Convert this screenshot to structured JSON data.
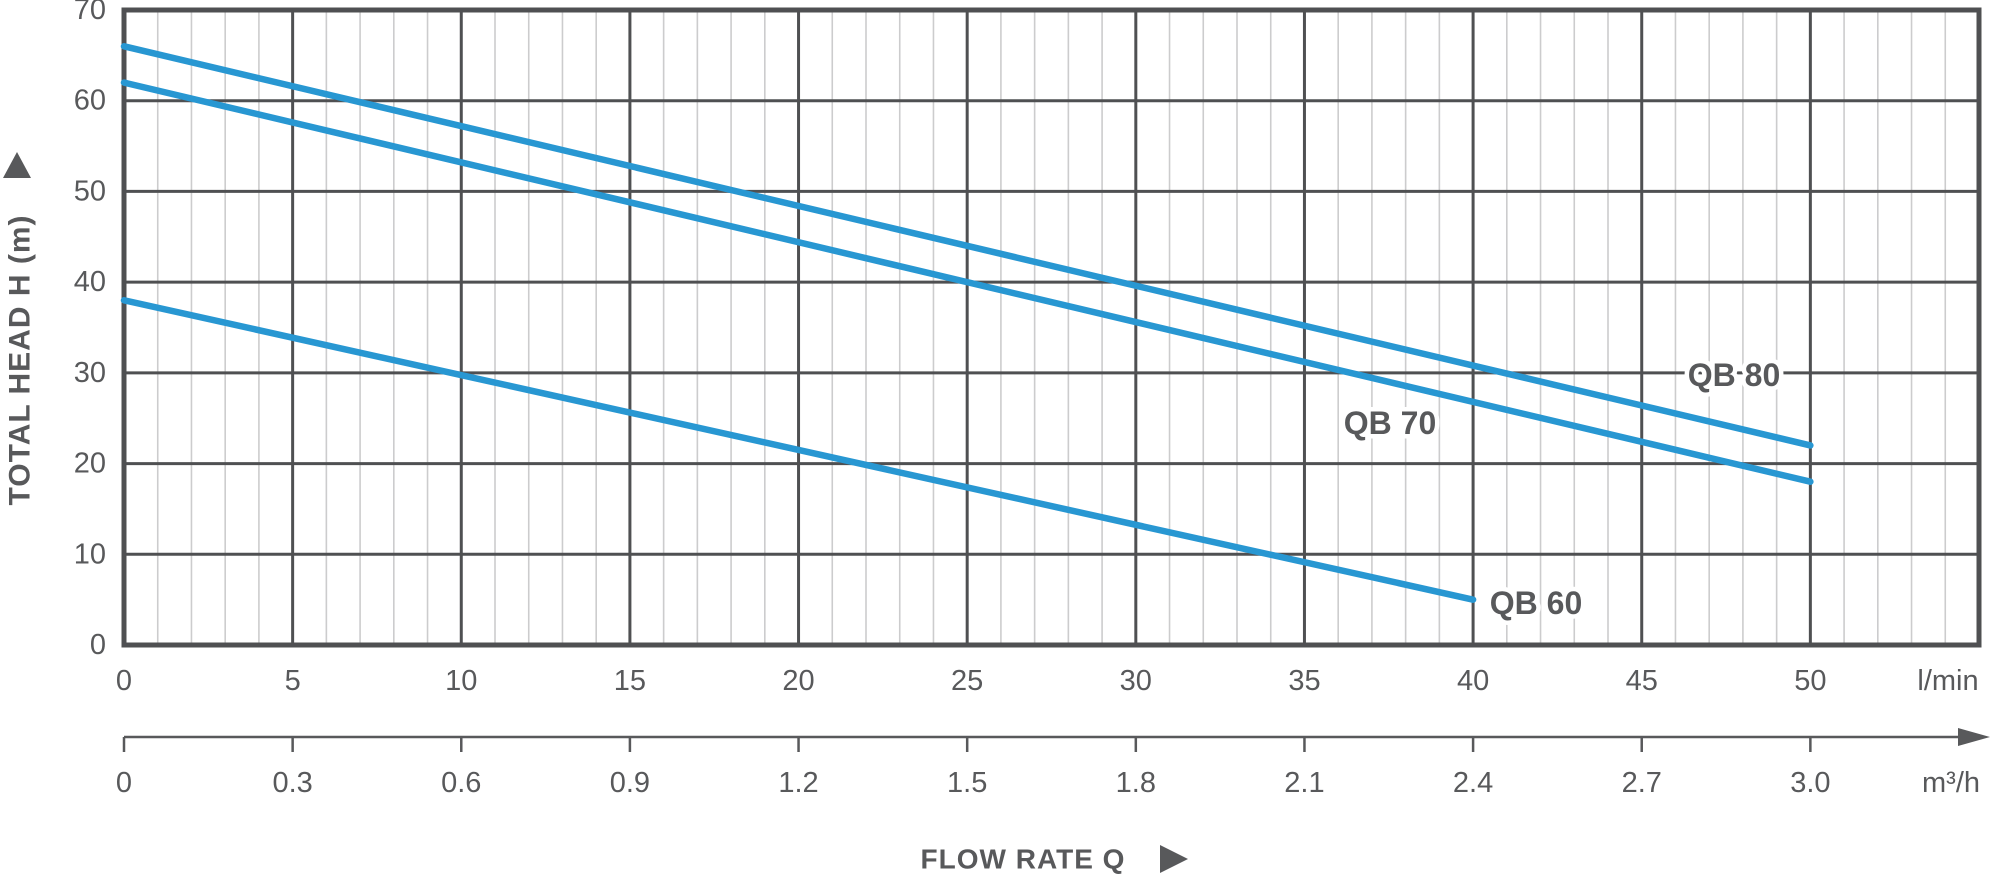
{
  "chart_data": {
    "type": "line",
    "title": "",
    "x_title": "FLOW RATE Q",
    "y_axis": {
      "title": "TOTAL HEAD H (m)",
      "ticks": [
        0,
        10,
        20,
        30,
        40,
        50,
        60,
        70
      ],
      "range": [
        0,
        70
      ],
      "grid": "major-horizontal"
    },
    "x_axis_primary": {
      "unit": "l/min",
      "ticks": [
        0,
        5,
        10,
        15,
        20,
        25,
        30,
        35,
        40,
        45,
        50
      ],
      "range_visible": [
        0,
        55
      ],
      "minor_step": 1,
      "major_step": 5,
      "grid": "major+minor-vertical"
    },
    "x_axis_secondary": {
      "unit": "m³/h",
      "tick_labels": [
        "0",
        "0.3",
        "0.6",
        "0.9",
        "1.2",
        "1.5",
        "1.8",
        "2.1",
        "2.4",
        "2.7",
        "3.0"
      ],
      "tick_values": [
        0,
        0.3,
        0.6,
        0.9,
        1.2,
        1.5,
        1.8,
        2.1,
        2.4,
        2.7,
        3.0
      ],
      "range": [
        0,
        3.0
      ],
      "style": "arrow-axis-below"
    },
    "series": [
      {
        "name": "QB 80",
        "points_lmin_m": [
          [
            0,
            66
          ],
          [
            50,
            22
          ]
        ]
      },
      {
        "name": "QB 70",
        "points_lmin_m": [
          [
            0,
            62
          ],
          [
            50,
            18
          ]
        ]
      },
      {
        "name": "QB 60",
        "points_lmin_m": [
          [
            0,
            38
          ],
          [
            40,
            5
          ]
        ]
      }
    ],
    "legend_position": "inline-labels-on-chart",
    "colors": {
      "curve": "#2897d2",
      "grid_major": "#4f5052",
      "grid_minor": "#cccccd",
      "text": "#58595b",
      "background": "#ffffff"
    }
  }
}
